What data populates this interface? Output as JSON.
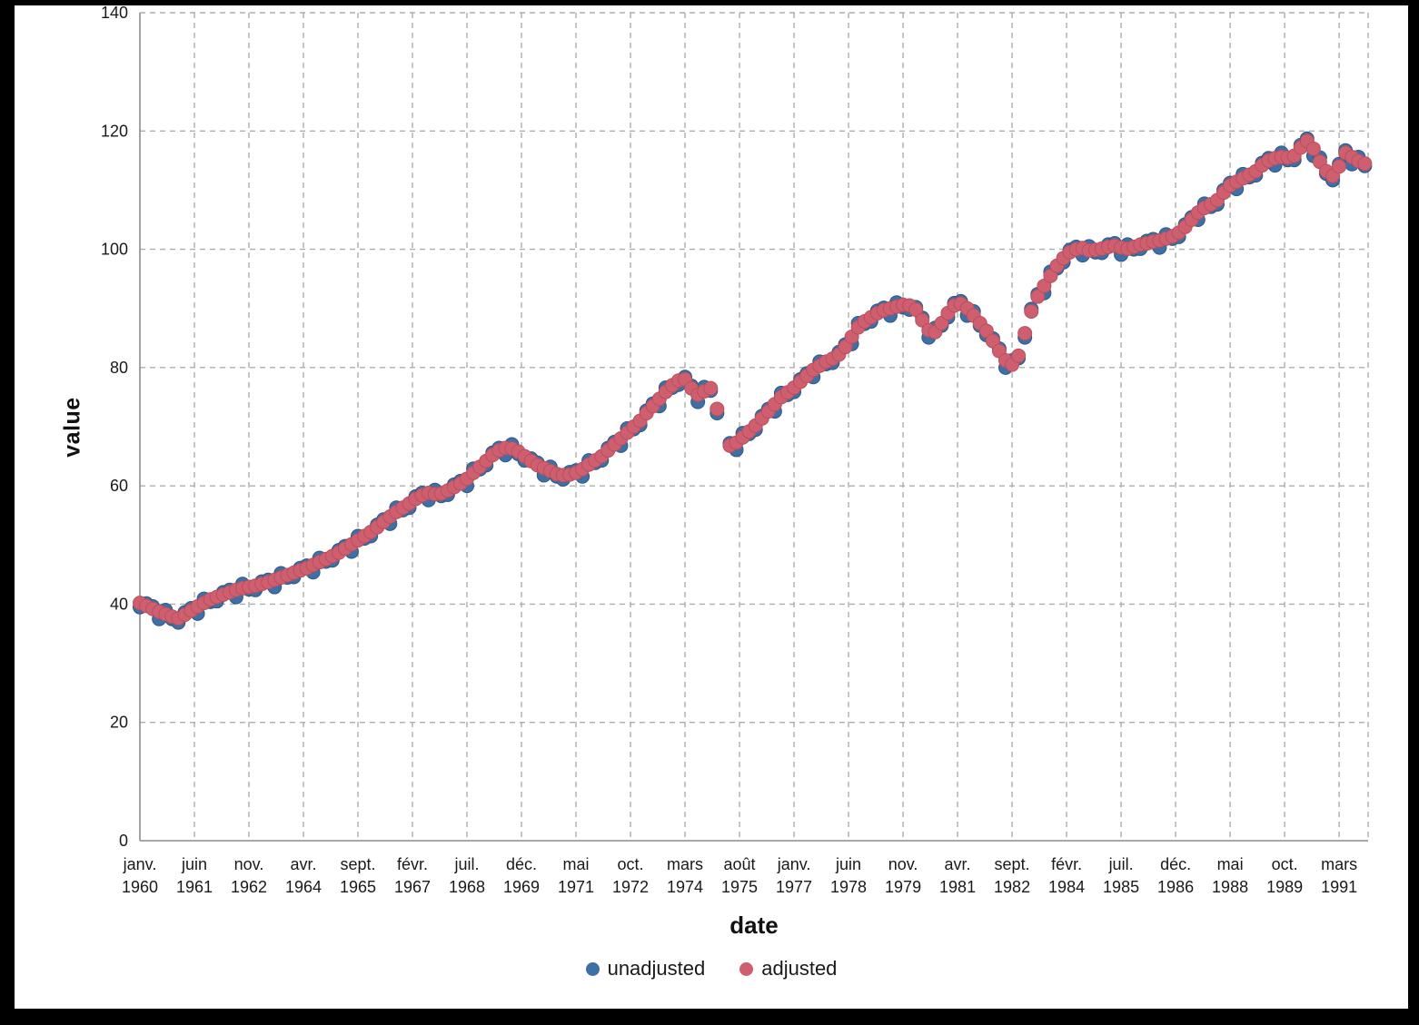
{
  "frame": {
    "background": "#000000",
    "surface": "#ffffff"
  },
  "axes": {
    "y_title": "value",
    "x_title": "date"
  },
  "chart_data": {
    "type": "scatter",
    "title": "",
    "xlabel": "date",
    "ylabel": "value",
    "ylim": [
      0,
      140
    ],
    "y_ticks": [
      0,
      20,
      40,
      60,
      80,
      100,
      120,
      140
    ],
    "grid": "dashed",
    "grid_color": "#adadad",
    "spine_color": "#8c8c8c",
    "legend_position": "bottom",
    "x_domain": [
      1960.0,
      1991.92
    ],
    "x_start_year": 1960,
    "x_step_months": 2,
    "x_tick_interval_months": 17,
    "x_tick_labels": [
      [
        "janv.",
        "1960"
      ],
      [
        "juin",
        "1961"
      ],
      [
        "nov.",
        "1962"
      ],
      [
        "avr.",
        "1964"
      ],
      [
        "sept.",
        "1965"
      ],
      [
        "févr.",
        "1967"
      ],
      [
        "juil.",
        "1968"
      ],
      [
        "déc.",
        "1969"
      ],
      [
        "mai",
        "1971"
      ],
      [
        "oct.",
        "1972"
      ],
      [
        "mars",
        "1974"
      ],
      [
        "août",
        "1975"
      ],
      [
        "janv.",
        "1977"
      ],
      [
        "juin",
        "1978"
      ],
      [
        "nov.",
        "1979"
      ],
      [
        "avr.",
        "1981"
      ],
      [
        "sept.",
        "1982"
      ],
      [
        "févr.",
        "1984"
      ],
      [
        "juil.",
        "1985"
      ],
      [
        "déc.",
        "1986"
      ],
      [
        "mai",
        "1988"
      ],
      [
        "oct.",
        "1989"
      ],
      [
        "mars",
        "1991"
      ]
    ],
    "series": [
      {
        "name": "unadjusted",
        "color": "#3e6fa7",
        "edge": "#2e5984",
        "values": [
          39.5,
          40.1,
          39.6,
          37.5,
          39.0,
          37.5,
          36.9,
          38.6,
          39.3,
          38.4,
          40.9,
          40.4,
          40.5,
          42.0,
          42.4,
          41.2,
          43.4,
          42.5,
          42.4,
          43.8,
          44.1,
          42.9,
          45.2,
          44.5,
          44.6,
          46.1,
          46.5,
          45.4,
          47.8,
          47.2,
          47.4,
          49.1,
          49.8,
          48.9,
          51.5,
          51.1,
          51.5,
          53.4,
          54.3,
          53.6,
          56.3,
          55.9,
          56.3,
          58.2,
          58.8,
          57.6,
          59.3,
          58.3,
          58.5,
          60.2,
          60.8,
          60.0,
          62.9,
          62.8,
          63.5,
          65.6,
          66.4,
          65.2,
          67.0,
          65.4,
          64.3,
          64.6,
          63.9,
          61.8,
          63.2,
          61.6,
          61.1,
          62.3,
          62.6,
          61.6,
          64.3,
          63.9,
          64.3,
          66.4,
          67.4,
          66.8,
          69.7,
          69.6,
          70.3,
          72.7,
          73.9,
          73.5,
          76.6,
          76.6,
          77.1,
          78.4,
          76.9,
          74.2,
          76.7,
          76.1,
          72.3,
          null,
          67.2,
          66.1,
          68.9,
          68.8,
          69.5,
          71.8,
          73.0,
          72.6,
          75.7,
          75.4,
          75.9,
          78.0,
          79.0,
          78.4,
          81.0,
          80.6,
          80.8,
          82.6,
          83.9,
          84.0,
          87.5,
          87.4,
          87.8,
          89.6,
          90.1,
          88.8,
          91.0,
          90.2,
          89.8,
          90.2,
          88.4,
          85.1,
          86.7,
          87.1,
          88.5,
          90.9,
          91.2,
          88.8,
          89.5,
          87.1,
          85.5,
          84.9,
          83.2,
          80.0,
          81.2,
          81.6,
          85.1,
          89.9,
          92.4,
          92.6,
          96.2,
          96.8,
          97.8,
          99.9,
          100.4,
          99.0,
          100.5,
          99.5,
          99.4,
          100.8,
          101.0,
          99.1,
          100.8,
          100.0,
          100.1,
          101.4,
          101.7,
          100.3,
          102.5,
          101.8,
          102.1,
          104.2,
          105.4,
          105.0,
          107.7,
          107.2,
          107.6,
          110.0,
          111.2,
          110.2,
          112.7,
          112.2,
          112.5,
          114.6,
          115.4,
          114.2,
          116.3,
          115.1,
          115.1,
          117.6,
          118.7,
          115.8,
          115.5,
          112.8,
          111.7,
          114.4,
          116.7,
          114.4,
          115.6,
          114.1
        ]
      },
      {
        "name": "adjusted",
        "color": "#cf5f6f",
        "edge": "#b5505f",
        "values": [
          40.2,
          39.7,
          39.2,
          38.7,
          38.3,
          37.9,
          37.6,
          38.2,
          38.9,
          39.6,
          40.2,
          40.8,
          41.2,
          41.6,
          42.0,
          42.4,
          42.7,
          42.9,
          43.1,
          43.4,
          43.7,
          44.1,
          44.5,
          44.9,
          45.3,
          45.7,
          46.1,
          46.6,
          47.1,
          47.6,
          48.1,
          48.7,
          49.4,
          50.1,
          50.8,
          51.5,
          52.2,
          53.0,
          53.9,
          54.8,
          55.6,
          56.3,
          57.0,
          57.8,
          58.4,
          58.8,
          58.6,
          58.7,
          59.2,
          59.8,
          60.4,
          61.2,
          62.2,
          63.2,
          64.2,
          65.2,
          66.0,
          66.4,
          66.3,
          65.8,
          65.0,
          64.2,
          63.5,
          63.0,
          62.5,
          62.0,
          61.8,
          61.9,
          62.2,
          62.8,
          63.6,
          64.3,
          65.0,
          66.0,
          67.0,
          68.0,
          69.0,
          70.0,
          71.0,
          72.3,
          73.5,
          74.7,
          75.9,
          77.0,
          77.8,
          78.0,
          76.5,
          75.4,
          76.0,
          76.5,
          73.0,
          null,
          66.8,
          67.3,
          68.2,
          69.2,
          70.2,
          71.4,
          72.6,
          73.8,
          75.0,
          75.8,
          76.6,
          77.6,
          78.6,
          79.6,
          80.3,
          81.0,
          81.5,
          82.2,
          83.5,
          85.2,
          86.8,
          87.8,
          88.5,
          89.2,
          89.7,
          90.0,
          90.3,
          90.6,
          90.5,
          89.8,
          88.0,
          86.3,
          86.0,
          87.5,
          89.2,
          90.5,
          90.8,
          90.0,
          88.8,
          87.5,
          86.2,
          84.5,
          82.8,
          81.2,
          80.5,
          82.0,
          85.8,
          89.5,
          92.0,
          93.8,
          95.5,
          97.2,
          98.5,
          99.5,
          100.0,
          100.2,
          99.8,
          99.9,
          100.1,
          100.4,
          100.6,
          100.3,
          100.1,
          100.4,
          100.8,
          101.0,
          101.3,
          101.5,
          101.8,
          102.2,
          102.8,
          103.8,
          105.0,
          106.2,
          107.0,
          107.6,
          108.3,
          109.6,
          110.8,
          111.4,
          112.0,
          112.6,
          113.2,
          114.2,
          115.0,
          115.4,
          115.6,
          115.5,
          115.8,
          117.2,
          118.3,
          117.0,
          114.8,
          113.2,
          112.4,
          114.0,
          116.3,
          115.6,
          114.9,
          114.5
        ]
      }
    ]
  }
}
